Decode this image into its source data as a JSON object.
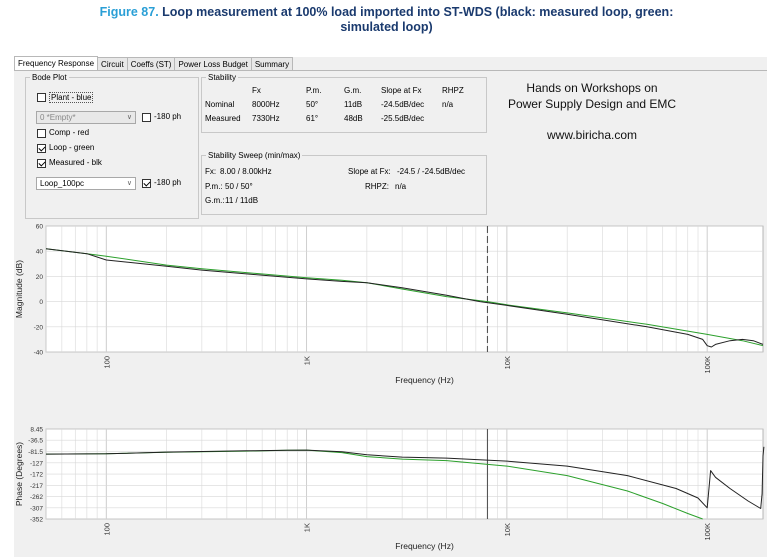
{
  "caption": {
    "figure_label": "Figure 87.",
    "line1": "Loop measurement at 100% load imported into ST-WDS (black: measured loop, green:",
    "line2": "simulated loop)"
  },
  "tabs": [
    "Frequency Response",
    "Circuit",
    "Coeffs (ST)",
    "Power Loss Budget",
    "Summary"
  ],
  "bode_plot": {
    "title": "Bode Plot",
    "plant_label": "Plant - blue",
    "plant_checked": false,
    "empty_select": "0 *Empty*",
    "empty_180_label": "-180 ph",
    "empty_180_checked": false,
    "comp_label": "Comp - red",
    "comp_checked": false,
    "loop_label": "Loop - green",
    "loop_checked": true,
    "measured_label": "Measured - blk",
    "measured_checked": true,
    "measured_select": "Loop_100pc",
    "measured_180_label": "-180 ph",
    "measured_180_checked": true
  },
  "stability": {
    "title": "Stability",
    "headers": [
      "Fx",
      "P.m.",
      "G.m.",
      "Slope at Fx",
      "RHPZ"
    ],
    "rows": [
      {
        "label": "Nominal",
        "fx": "8000Hz",
        "pm": "50°",
        "gm": "11dB",
        "slope": "-24.5dB/dec",
        "rhpz": "n/a"
      },
      {
        "label": "Measured",
        "fx": "7330Hz",
        "pm": "61°",
        "gm": "48dB",
        "slope": "-25.5dB/dec",
        "rhpz": ""
      }
    ]
  },
  "sweep": {
    "title": "Stability Sweep (min/max)",
    "fx_label": "Fx:",
    "fx_value": "8.00 / 8.00kHz",
    "slope_label": "Slope at Fx:",
    "slope_value": "-24.5 / -24.5dB/dec",
    "pm_label": "P.m.:",
    "pm_value": "50 / 50°",
    "rhpz_label": "RHPZ:",
    "rhpz_value": "n/a",
    "gm_label": "G.m.:",
    "gm_value": "11 / 11dB"
  },
  "promo": {
    "line1": "Hands on Workshops on",
    "line2": "Power Supply Design and EMC",
    "url": "www.biricha.com"
  },
  "colors": {
    "measured": "#222222",
    "simulated": "#2ca02c",
    "fx_marker": "#555555",
    "grid": "#d8d8d8"
  },
  "chart_data": [
    {
      "type": "line",
      "ylabel": "Magnitude (dB)",
      "xlabel": "Frequency (Hz)",
      "x_scale": "log",
      "xlim": [
        50,
        190000
      ],
      "ylim": [
        -40,
        60
      ],
      "y_ticks": [
        60,
        40,
        20,
        0,
        -20,
        -40
      ],
      "x_tick_labels": [
        {
          "value": 100,
          "label": "100"
        },
        {
          "value": 1000,
          "label": "1K"
        },
        {
          "value": 10000,
          "label": "10K"
        },
        {
          "value": 100000,
          "label": "100K"
        }
      ],
      "fx_marker": 8000,
      "series": [
        {
          "color": "#2ca02c",
          "points": [
            [
              50,
              42
            ],
            [
              80,
              38
            ],
            [
              100,
              36
            ],
            [
              200,
              29
            ],
            [
              300,
              26
            ],
            [
              500,
              23
            ],
            [
              1000,
              19
            ],
            [
              1500,
              17
            ],
            [
              2000,
              15
            ],
            [
              3000,
              10
            ],
            [
              5000,
              4
            ],
            [
              8000,
              0
            ],
            [
              10000,
              -2.5
            ],
            [
              20000,
              -9
            ],
            [
              50000,
              -18
            ],
            [
              100000,
              -26
            ],
            [
              150000,
              -31
            ],
            [
              190000,
              -35
            ]
          ]
        },
        {
          "color": "#222222",
          "points": [
            [
              50,
              42
            ],
            [
              80,
              38
            ],
            [
              100,
              33
            ],
            [
              200,
              28
            ],
            [
              300,
              25
            ],
            [
              500,
              22
            ],
            [
              1000,
              18
            ],
            [
              1500,
              16
            ],
            [
              2000,
              15
            ],
            [
              3000,
              11
            ],
            [
              5000,
              5
            ],
            [
              7330,
              0
            ],
            [
              10000,
              -3
            ],
            [
              20000,
              -10
            ],
            [
              50000,
              -20
            ],
            [
              80000,
              -26
            ],
            [
              95000,
              -30
            ],
            [
              100000,
              -35
            ],
            [
              105000,
              -36
            ],
            [
              110000,
              -34
            ],
            [
              130000,
              -31
            ],
            [
              150000,
              -30
            ],
            [
              170000,
              -31
            ],
            [
              190000,
              -34
            ]
          ]
        }
      ]
    },
    {
      "type": "line",
      "ylabel": "Phase (Degrees)",
      "xlabel": "Frequency (Hz)",
      "x_scale": "log",
      "xlim": [
        50,
        190000
      ],
      "ylim": [
        -352,
        8.45
      ],
      "y_ticks": [
        8.45,
        -36.5,
        -81.5,
        -127,
        -172,
        -217,
        -262,
        -307,
        -352
      ],
      "x_tick_labels": [
        {
          "value": 100,
          "label": "100"
        },
        {
          "value": 1000,
          "label": "1K"
        },
        {
          "value": 10000,
          "label": "10K"
        },
        {
          "value": 100000,
          "label": "100K"
        }
      ],
      "fx_marker": 8000,
      "series": [
        {
          "color": "#2ca02c",
          "points": [
            [
              50,
              -92
            ],
            [
              100,
              -91
            ],
            [
              200,
              -85
            ],
            [
              500,
              -80
            ],
            [
              800,
              -77
            ],
            [
              1000,
              -76
            ],
            [
              1500,
              -86
            ],
            [
              2000,
              -102
            ],
            [
              3000,
              -112
            ],
            [
              5000,
              -118
            ],
            [
              10000,
              -140
            ],
            [
              20000,
              -178
            ],
            [
              40000,
              -240
            ],
            [
              60000,
              -290
            ],
            [
              80000,
              -330
            ],
            [
              95000,
              -352
            ]
          ]
        },
        {
          "color": "#222222",
          "points": [
            [
              50,
              -92
            ],
            [
              100,
              -91
            ],
            [
              200,
              -84
            ],
            [
              500,
              -79
            ],
            [
              800,
              -77
            ],
            [
              1000,
              -76
            ],
            [
              1500,
              -83
            ],
            [
              2000,
              -95
            ],
            [
              3000,
              -104
            ],
            [
              5000,
              -108
            ],
            [
              10000,
              -120
            ],
            [
              20000,
              -140
            ],
            [
              40000,
              -178
            ],
            [
              70000,
              -230
            ],
            [
              90000,
              -268
            ],
            [
              100000,
              -307
            ],
            [
              104000,
              -158
            ],
            [
              110000,
              -185
            ],
            [
              130000,
              -230
            ],
            [
              160000,
              -280
            ],
            [
              185000,
              -310
            ],
            [
              188000,
              -250
            ],
            [
              190000,
              -100
            ],
            [
              192000,
              -63
            ]
          ]
        }
      ]
    }
  ]
}
